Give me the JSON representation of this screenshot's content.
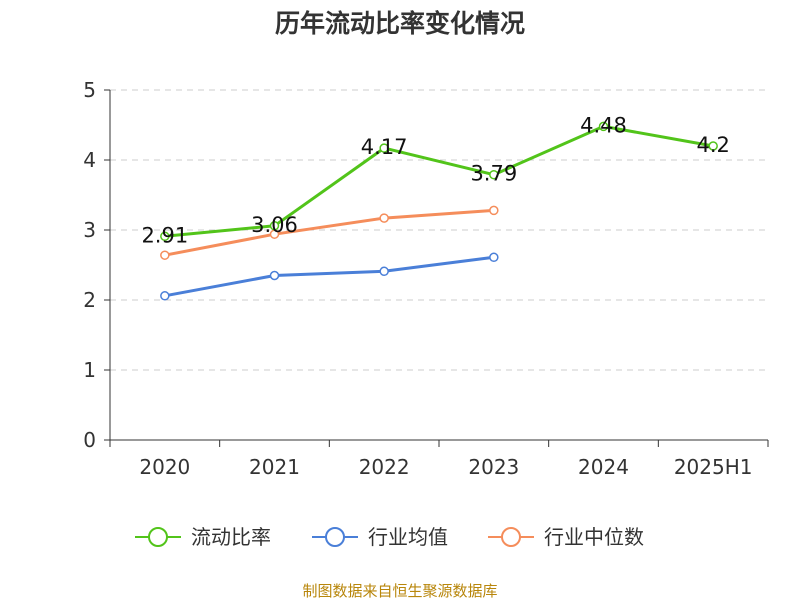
{
  "chart_data": {
    "type": "line",
    "title": "历年流动比率变化情况",
    "categories": [
      "2020",
      "2021",
      "2022",
      "2023",
      "2024",
      "2025H1"
    ],
    "ylim": [
      0,
      5
    ],
    "yticks": [
      "0",
      "1",
      "2",
      "3",
      "4",
      "5"
    ],
    "grid": true,
    "legend_position": "bottom",
    "series": [
      {
        "name": "流动比率",
        "color": "#52c41a",
        "values": [
          2.91,
          3.06,
          4.17,
          3.79,
          4.48,
          4.2
        ],
        "labels": [
          "2.91",
          "3.06",
          "4.17",
          "3.79",
          "4.48",
          "4.2"
        ]
      },
      {
        "name": "行业均值",
        "color": "#4a7fd8",
        "values": [
          2.06,
          2.35,
          2.41,
          2.61,
          null,
          null
        ]
      },
      {
        "name": "行业中位数",
        "color": "#f58d5b",
        "values": [
          2.64,
          2.94,
          3.17,
          3.28,
          null,
          null
        ]
      }
    ],
    "source": "制图数据来自恒生聚源数据库"
  }
}
